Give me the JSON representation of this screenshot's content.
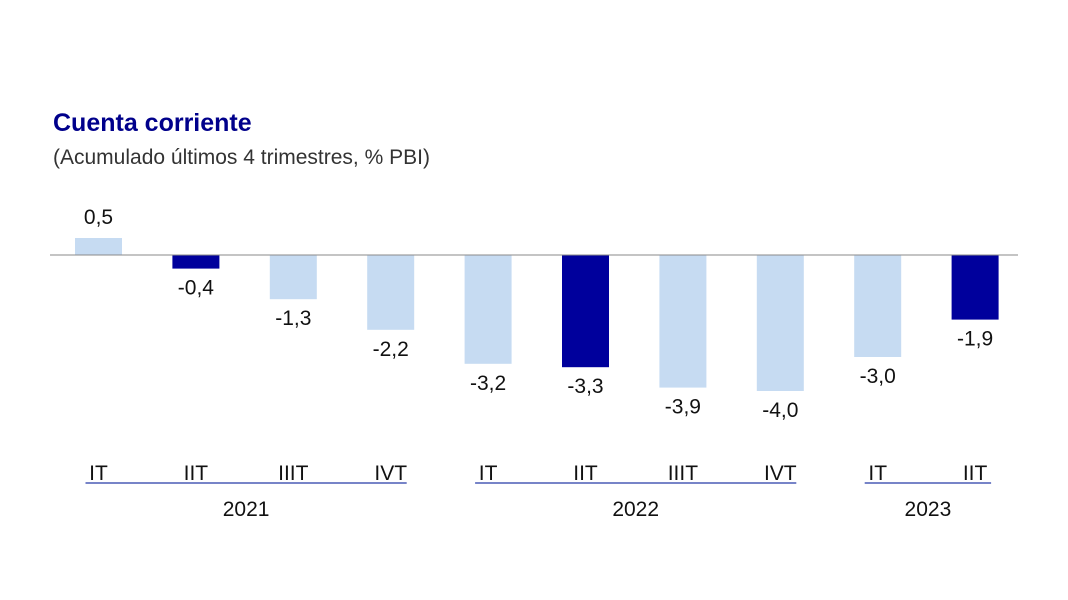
{
  "colors": {
    "bar_light": "#c6dbf2",
    "bar_dark": "#00009c",
    "title": "#00008b",
    "group_line": "#4a5bb6",
    "axis": "#8a8a8a"
  },
  "chart_data": {
    "type": "bar",
    "title": "Cuenta corriente",
    "subtitle": "(Acumulado últimos 4 trimestres, % PBI)",
    "categories": [
      "IT",
      "IIT",
      "IIIT",
      "IVT",
      "IT",
      "IIT",
      "IIIT",
      "IVT",
      "IT",
      "IIT"
    ],
    "values": [
      0.5,
      -0.4,
      -1.3,
      -2.2,
      -3.2,
      -3.3,
      -3.9,
      -4.0,
      -3.0,
      -1.9
    ],
    "value_labels": [
      "0,5",
      "-0,4",
      "-1,3",
      "-2,2",
      "-3,2",
      "-3,3",
      "-3,9",
      "-4,0",
      "-3,0",
      "-1,9"
    ],
    "highlight": [
      false,
      true,
      false,
      false,
      false,
      true,
      false,
      false,
      false,
      true
    ],
    "groups": [
      {
        "label": "2021",
        "start": 0,
        "end": 3
      },
      {
        "label": "2022",
        "start": 4,
        "end": 7
      },
      {
        "label": "2023",
        "start": 8,
        "end": 9
      }
    ],
    "xlabel": "",
    "ylabel": "",
    "ylim": [
      -4.0,
      0.5
    ],
    "grid": false,
    "legend": "none"
  }
}
